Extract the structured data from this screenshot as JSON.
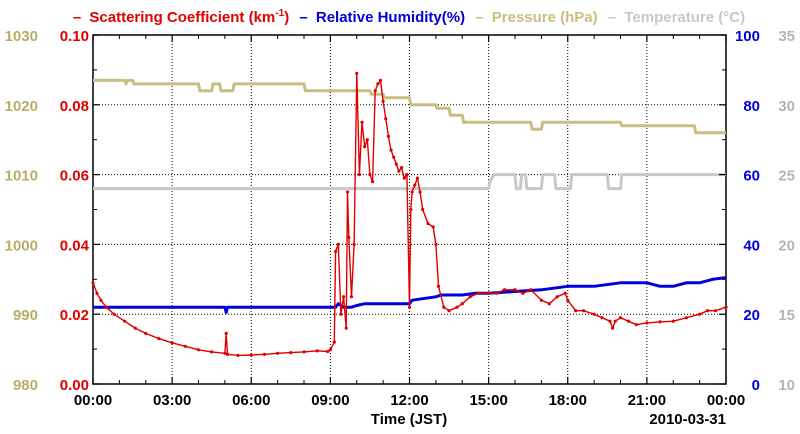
{
  "chart_data": {
    "type": "line",
    "legend": {
      "dash": "–",
      "scattering_prefix": "Scattering Coefficient (km",
      "scattering_exp": "-1",
      "scattering_suffix": ")",
      "humidity": "Relative Humidity(%)",
      "pressure": "Pressure (hPa)",
      "temperature": "Temperature (°C)"
    },
    "xlabel": "Time (JST)",
    "date_label": "2010-03-31",
    "x_range": [
      0,
      24
    ],
    "x_ticks": [
      0,
      3,
      6,
      9,
      12,
      15,
      18,
      21,
      24
    ],
    "x_tick_labels": [
      "00:00",
      "03:00",
      "06:00",
      "09:00",
      "12:00",
      "15:00",
      "18:00",
      "21:00",
      "00:00"
    ],
    "axes": {
      "pressure": {
        "range": [
          980,
          1030
        ],
        "ticks": [
          "980",
          "990",
          "1000",
          "1010",
          "1020",
          "1030"
        ]
      },
      "scattering": {
        "range": [
          0,
          0.1
        ],
        "ticks": [
          "0.00",
          "0.02",
          "0.04",
          "0.06",
          "0.08",
          "0.10"
        ]
      },
      "humidity": {
        "range": [
          0,
          100
        ],
        "ticks": [
          "0",
          "20",
          "40",
          "60",
          "80",
          "100"
        ]
      },
      "temperature": {
        "range": [
          10,
          35
        ],
        "ticks": [
          "10",
          "15",
          "20",
          "25",
          "30",
          "35"
        ]
      }
    },
    "colors": {
      "scattering": "#e00000",
      "humidity": "#0000dd",
      "pressure": "#c8be82",
      "temperature": "#c8c8c8",
      "pressure_labels": "#b8ad68",
      "temperature_labels": "#b4b4b4"
    },
    "series": [
      {
        "name": "Scattering Coefficient",
        "axis": "scattering",
        "markers": true,
        "points": [
          [
            0,
            0.029
          ],
          [
            0.15,
            0.026
          ],
          [
            0.3,
            0.024
          ],
          [
            0.5,
            0.022
          ],
          [
            0.8,
            0.02
          ],
          [
            1.2,
            0.018
          ],
          [
            1.6,
            0.016
          ],
          [
            2.0,
            0.0145
          ],
          [
            2.5,
            0.013
          ],
          [
            3.0,
            0.0118
          ],
          [
            3.5,
            0.0108
          ],
          [
            4.0,
            0.0098
          ],
          [
            4.5,
            0.0092
          ],
          [
            5.0,
            0.0088
          ],
          [
            5.05,
            0.0145
          ],
          [
            5.1,
            0.0085
          ],
          [
            5.5,
            0.0082
          ],
          [
            6.0,
            0.0083
          ],
          [
            6.5,
            0.0085
          ],
          [
            7.0,
            0.0088
          ],
          [
            7.5,
            0.009
          ],
          [
            8.0,
            0.0092
          ],
          [
            8.5,
            0.0095
          ],
          [
            8.9,
            0.0093
          ],
          [
            9.0,
            0.0098
          ],
          [
            9.15,
            0.012
          ],
          [
            9.2,
            0.038
          ],
          [
            9.3,
            0.04
          ],
          [
            9.4,
            0.02
          ],
          [
            9.5,
            0.025
          ],
          [
            9.6,
            0.016
          ],
          [
            9.65,
            0.055
          ],
          [
            9.7,
            0.042
          ],
          [
            9.8,
            0.025
          ],
          [
            9.9,
            0.04
          ],
          [
            10.0,
            0.089
          ],
          [
            10.1,
            0.06
          ],
          [
            10.2,
            0.075
          ],
          [
            10.3,
            0.068
          ],
          [
            10.4,
            0.07
          ],
          [
            10.5,
            0.06
          ],
          [
            10.6,
            0.058
          ],
          [
            10.7,
            0.084
          ],
          [
            10.8,
            0.086
          ],
          [
            10.9,
            0.087
          ],
          [
            11.0,
            0.081
          ],
          [
            11.1,
            0.076
          ],
          [
            11.2,
            0.071
          ],
          [
            11.3,
            0.067
          ],
          [
            11.4,
            0.065
          ],
          [
            11.5,
            0.063
          ],
          [
            11.6,
            0.061
          ],
          [
            11.7,
            0.062
          ],
          [
            11.8,
            0.059
          ],
          [
            11.9,
            0.06
          ],
          [
            12.0,
            0.022
          ],
          [
            12.05,
            0.05
          ],
          [
            12.1,
            0.055
          ],
          [
            12.2,
            0.057
          ],
          [
            12.3,
            0.059
          ],
          [
            12.4,
            0.055
          ],
          [
            12.5,
            0.05
          ],
          [
            12.7,
            0.046
          ],
          [
            12.9,
            0.045
          ],
          [
            13.0,
            0.04
          ],
          [
            13.1,
            0.028
          ],
          [
            13.3,
            0.022
          ],
          [
            13.5,
            0.021
          ],
          [
            13.8,
            0.022
          ],
          [
            14.0,
            0.023
          ],
          [
            14.3,
            0.025
          ],
          [
            14.6,
            0.026
          ],
          [
            15.0,
            0.026
          ],
          [
            15.3,
            0.026
          ],
          [
            15.6,
            0.027
          ],
          [
            16.0,
            0.027
          ],
          [
            16.3,
            0.026
          ],
          [
            16.6,
            0.027
          ],
          [
            17.0,
            0.024
          ],
          [
            17.3,
            0.023
          ],
          [
            17.6,
            0.025
          ],
          [
            17.9,
            0.026
          ],
          [
            18.0,
            0.024
          ],
          [
            18.3,
            0.021
          ],
          [
            18.6,
            0.021
          ],
          [
            19.0,
            0.02
          ],
          [
            19.3,
            0.019
          ],
          [
            19.6,
            0.018
          ],
          [
            19.7,
            0.016
          ],
          [
            19.8,
            0.018
          ],
          [
            20.0,
            0.019
          ],
          [
            20.3,
            0.018
          ],
          [
            20.6,
            0.017
          ],
          [
            21.0,
            0.0175
          ],
          [
            21.5,
            0.0178
          ],
          [
            22.0,
            0.018
          ],
          [
            22.5,
            0.019
          ],
          [
            23.0,
            0.02
          ],
          [
            23.3,
            0.021
          ],
          [
            23.6,
            0.021
          ],
          [
            24.0,
            0.022
          ]
        ]
      },
      {
        "name": "Relative Humidity",
        "axis": "humidity",
        "markers": false,
        "points": [
          [
            0,
            22
          ],
          [
            5.0,
            22
          ],
          [
            5.05,
            20.5
          ],
          [
            5.1,
            22
          ],
          [
            9.2,
            22
          ],
          [
            9.3,
            23
          ],
          [
            9.5,
            22
          ],
          [
            9.8,
            22
          ],
          [
            10.0,
            22.5
          ],
          [
            10.3,
            23
          ],
          [
            11.0,
            23
          ],
          [
            12.0,
            23
          ],
          [
            12.1,
            24
          ],
          [
            13.0,
            25
          ],
          [
            13.2,
            25.5
          ],
          [
            14.0,
            25.5
          ],
          [
            14.5,
            26
          ],
          [
            15.0,
            26
          ],
          [
            16.0,
            26.5
          ],
          [
            17.0,
            27
          ],
          [
            18.0,
            28
          ],
          [
            19.0,
            28
          ],
          [
            20.0,
            29
          ],
          [
            21.0,
            29
          ],
          [
            21.5,
            28
          ],
          [
            22.0,
            28
          ],
          [
            22.5,
            29
          ],
          [
            23.0,
            29
          ],
          [
            23.5,
            30
          ],
          [
            24.0,
            30.5
          ]
        ]
      },
      {
        "name": "Pressure",
        "axis": "pressure",
        "markers": false,
        "points": [
          [
            0,
            1023.5
          ],
          [
            1.2,
            1023.5
          ],
          [
            1.25,
            1023
          ],
          [
            1.3,
            1023.5
          ],
          [
            1.5,
            1023.5
          ],
          [
            1.55,
            1023
          ],
          [
            4.0,
            1023
          ],
          [
            4.05,
            1022
          ],
          [
            4.5,
            1022
          ],
          [
            4.55,
            1023
          ],
          [
            4.8,
            1023
          ],
          [
            4.85,
            1022
          ],
          [
            5.3,
            1022
          ],
          [
            5.35,
            1023
          ],
          [
            8.0,
            1023
          ],
          [
            8.05,
            1022
          ],
          [
            10.5,
            1022
          ],
          [
            10.55,
            1021.5
          ],
          [
            11.0,
            1021.5
          ],
          [
            11.05,
            1021
          ],
          [
            12.0,
            1021
          ],
          [
            12.05,
            1020
          ],
          [
            13.0,
            1020
          ],
          [
            13.05,
            1019.5
          ],
          [
            13.5,
            1019.5
          ],
          [
            13.55,
            1018.5
          ],
          [
            14.0,
            1018.5
          ],
          [
            14.05,
            1017.5
          ],
          [
            16.0,
            1017.5
          ],
          [
            16.05,
            1017.5
          ],
          [
            16.6,
            1017.5
          ],
          [
            16.65,
            1016.5
          ],
          [
            17.0,
            1016.5
          ],
          [
            17.05,
            1017.5
          ],
          [
            20.0,
            1017.5
          ],
          [
            20.05,
            1017
          ],
          [
            22.8,
            1017
          ],
          [
            22.85,
            1016
          ],
          [
            24.0,
            1016
          ]
        ]
      },
      {
        "name": "Temperature",
        "axis": "temperature",
        "markers": false,
        "points": [
          [
            0,
            24
          ],
          [
            15.0,
            24
          ],
          [
            15.05,
            24.5
          ],
          [
            15.2,
            25
          ],
          [
            16.0,
            25
          ],
          [
            16.05,
            24
          ],
          [
            16.2,
            24
          ],
          [
            16.25,
            25
          ],
          [
            16.4,
            25
          ],
          [
            16.45,
            24
          ],
          [
            17.0,
            24
          ],
          [
            17.05,
            25
          ],
          [
            17.5,
            25
          ],
          [
            17.55,
            24
          ],
          [
            18.1,
            24
          ],
          [
            18.15,
            25
          ],
          [
            19.5,
            25
          ],
          [
            19.55,
            24
          ],
          [
            20.0,
            24
          ],
          [
            20.05,
            25
          ],
          [
            24.0,
            25
          ]
        ]
      }
    ]
  }
}
